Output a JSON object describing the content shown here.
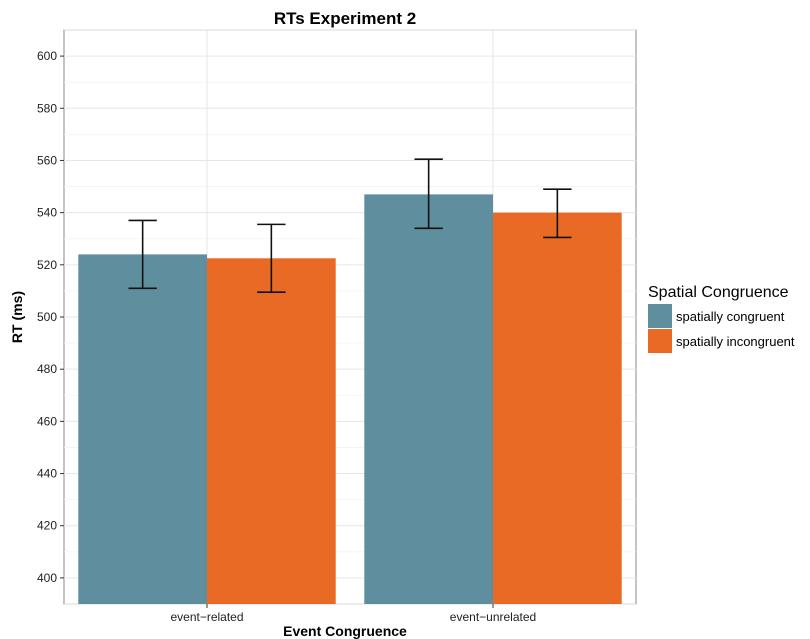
{
  "chart_data": {
    "type": "bar",
    "title": "RTs Experiment 2",
    "xlabel": "Event Congruence",
    "ylabel": "RT (ms)",
    "categories": [
      "event−related",
      "event−unrelated"
    ],
    "ylim": [
      390,
      610
    ],
    "yticks": [
      400,
      420,
      440,
      460,
      480,
      500,
      520,
      540,
      560,
      580,
      600
    ],
    "grid": true,
    "legend": {
      "title": "Spatial Congruence",
      "placement": "right"
    },
    "series": [
      {
        "name": "spatially congruent",
        "color": "#5f8f9e",
        "values": [
          524,
          547
        ],
        "err_low": [
          511,
          534
        ],
        "err_high": [
          537,
          560.5
        ]
      },
      {
        "name": "spatially incongruent",
        "color": "#e96a24",
        "values": [
          522.5,
          540
        ],
        "err_low": [
          509.5,
          530.5
        ],
        "err_high": [
          535.5,
          549
        ]
      }
    ]
  }
}
